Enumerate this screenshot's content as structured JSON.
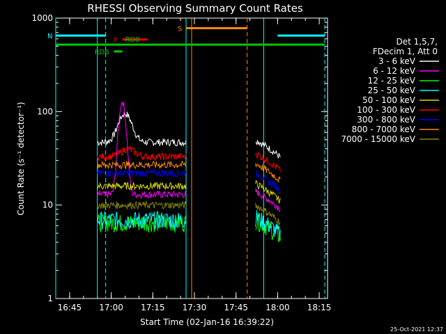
{
  "chart_data": {
    "type": "line",
    "title": "RHESSI Observing Summary Count Rates",
    "xlabel": "Start Time (02-Jan-16 16:39:22)",
    "ylabel": "Count Rate (s⁻¹ detector⁻¹)",
    "yscale": "log",
    "ylim": [
      1,
      1000
    ],
    "xlim_minutes_after_1640": [
      0,
      98
    ],
    "x_ticks": [
      "16:45",
      "17:00",
      "17:15",
      "17:30",
      "17:45",
      "18:00",
      "18:15"
    ],
    "y_ticks": [
      "1",
      "10",
      "100",
      "1000"
    ],
    "legend": {
      "placement": "right",
      "header": [
        "Det 1,5,7,",
        "FDecim 1, Att 0"
      ],
      "entries": [
        {
          "label": "3 - 6 keV",
          "color": "#ffffff"
        },
        {
          "label": "6 - 12 keV",
          "color": "#ff00ff"
        },
        {
          "label": "12 - 25 keV",
          "color": "#00ff00"
        },
        {
          "label": "25 - 50 keV",
          "color": "#00ffff"
        },
        {
          "label": "50 - 100 keV",
          "color": "#dddd00"
        },
        {
          "label": "100 - 300 keV",
          "color": "#ff0000"
        },
        {
          "label": "300 - 800 keV",
          "color": "#0000ff"
        },
        {
          "label": "800 - 7000 keV",
          "color": "#ff8800"
        },
        {
          "label": "7000 - 15000 keV",
          "color": "#888800"
        }
      ]
    },
    "segments": [
      {
        "start": "16:55",
        "end": "17:27"
      },
      {
        "start": "17:52",
        "end": "18:01"
      }
    ],
    "series": [
      {
        "name": "3 - 6 keV",
        "color": "#ffffff",
        "level_seg1": 47,
        "level_seg2": 50,
        "peak": {
          "time": "17:05",
          "value": 95
        }
      },
      {
        "name": "6 - 12 keV",
        "color": "#ff00ff",
        "level_seg1": 13,
        "level_seg2": 14,
        "peak": {
          "time": "17:04",
          "value": 128
        }
      },
      {
        "name": "12 - 25 keV",
        "color": "#00ff00",
        "level_seg1": 6.5,
        "level_seg2": 7,
        "peak": null
      },
      {
        "name": "25 - 50 keV",
        "color": "#00ffff",
        "level_seg1": 7,
        "level_seg2": 7.5,
        "peak": null
      },
      {
        "name": "50 - 100 keV",
        "color": "#dddd00",
        "level_seg1": 16,
        "level_seg2": 17,
        "peak": null
      },
      {
        "name": "100 - 300 keV",
        "color": "#ff0000",
        "level_seg1": 33,
        "level_seg2": 36,
        "peak": {
          "time": "17:06",
          "value": 40
        }
      },
      {
        "name": "300 - 800 keV",
        "color": "#0000ff",
        "level_seg1": 22,
        "level_seg2": 22,
        "peak": null
      },
      {
        "name": "800 - 7000 keV",
        "color": "#ff8800",
        "level_seg1": 27,
        "level_seg2": 28,
        "peak": null
      },
      {
        "name": "7000 - 15000 keV",
        "color": "#888800",
        "level_seg1": 10,
        "level_seg2": 10,
        "peak": null
      }
    ],
    "flags": [
      {
        "label": "N",
        "color": "#00ffff",
        "value": 650,
        "start": "16:40",
        "end": "16:58"
      },
      {
        "label": "",
        "color": "#00ffff",
        "value": 650,
        "start": "18:00",
        "end": "18:17"
      },
      {
        "label": "S",
        "color": "#ff8800",
        "value": 780,
        "start": "17:27",
        "end": "17:49"
      },
      {
        "label": "F",
        "color": "#ff0000",
        "value": 590,
        "start": "17:04",
        "end": "17:13"
      },
      {
        "label": "RD0",
        "color": "#00cc00",
        "value": 520,
        "start": "16:40",
        "end": "18:17"
      },
      {
        "label": "RD6",
        "color": "#00cc00",
        "value": 440,
        "start": "17:01",
        "end": "17:04"
      }
    ],
    "verticals": [
      {
        "time": "16:40",
        "color": "#00ffff",
        "style": "solid"
      },
      {
        "time": "16:55",
        "color": "#00ffff",
        "style": "solid"
      },
      {
        "time": "16:58",
        "color": "#00ffff",
        "style": "dashed"
      },
      {
        "time": "17:27",
        "color": "#00ffff",
        "style": "solid"
      },
      {
        "time": "17:29",
        "color": "#ff8800",
        "style": "solid"
      },
      {
        "time": "17:49",
        "color": "#ff8800",
        "style": "dashed"
      },
      {
        "time": "17:55",
        "color": "#00ffff",
        "style": "solid"
      },
      {
        "time": "18:17",
        "color": "#00ffff",
        "style": "dashed"
      }
    ]
  },
  "footer": {
    "timestamp": "25-Oct-2021 12:37"
  }
}
